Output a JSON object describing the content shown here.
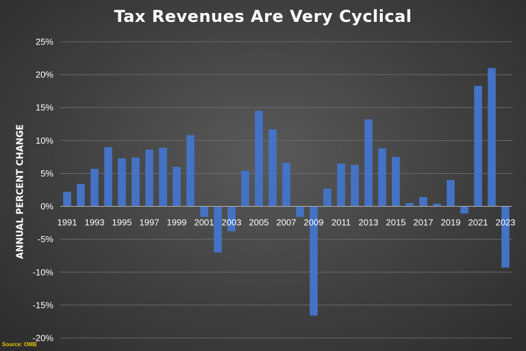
{
  "colors": {
    "bar": "#4472c4",
    "grid": "#6a6a6a",
    "axis": "#a9a9a9",
    "text": "#ffffff",
    "source": "#e6c200"
  },
  "chart_data": {
    "type": "bar",
    "title": "Tax Revenues Are Very Cyclical",
    "ylabel": "ANNUAL PERCENT CHANGE",
    "xlabel": "",
    "source": "Source: OMB",
    "ylim": [
      -20,
      25
    ],
    "yticks": [
      25,
      20,
      15,
      10,
      5,
      0,
      -5,
      -10,
      -15,
      -20
    ],
    "ytick_labels": [
      "25%",
      "20%",
      "15%",
      "10%",
      "5%",
      "0%",
      "-5%",
      "-10%",
      "-15%",
      "-20%"
    ],
    "grid": true,
    "categories": [
      "1991",
      "1992",
      "1993",
      "1994",
      "1995",
      "1996",
      "1997",
      "1998",
      "1999",
      "2000",
      "2001",
      "2002",
      "2003",
      "2004",
      "2005",
      "2006",
      "2007",
      "2008",
      "2009",
      "2010",
      "2011",
      "2012",
      "2013",
      "2014",
      "2015",
      "2016",
      "2017",
      "2018",
      "2019",
      "2020",
      "2021",
      "2022",
      "2023"
    ],
    "xtick_labels": [
      "1991",
      "1993",
      "1995",
      "1997",
      "1999",
      "2001",
      "2003",
      "2005",
      "2007",
      "2009",
      "2011",
      "2013",
      "2015",
      "2017",
      "2019",
      "2021",
      "2023"
    ],
    "values": [
      2.2,
      3.4,
      5.7,
      9.0,
      7.3,
      7.4,
      8.6,
      8.9,
      6.0,
      10.8,
      -1.6,
      -7.0,
      -3.8,
      5.4,
      14.5,
      11.7,
      6.6,
      -1.6,
      -16.6,
      2.7,
      6.5,
      6.3,
      13.2,
      8.8,
      7.5,
      0.5,
      1.4,
      0.4,
      4.0,
      -1.1,
      18.3,
      21.0,
      -9.3
    ]
  }
}
